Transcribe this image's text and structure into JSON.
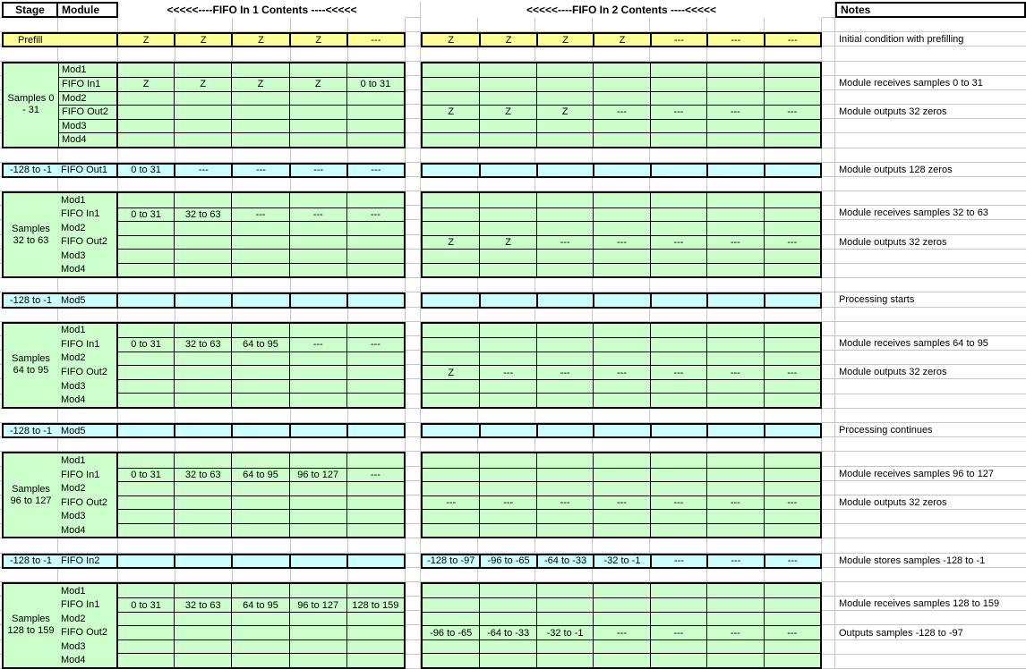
{
  "header": {
    "stage": "Stage",
    "module": "Module",
    "fifo1": "<<<<<----FIFO In 1 Contents ----<<<<<",
    "fifo2": "<<<<<----FIFO In 2 Contents ----<<<<<",
    "notes": "Notes"
  },
  "colors": {
    "prefill": "#FFFF99",
    "block": "#CCFFCC",
    "interlude": "#CCFFFF",
    "gridline": "#C6C6C6",
    "border": "#000000"
  },
  "prefill_row": {
    "label": "Prefill",
    "fifo1": [
      "Z",
      "Z",
      "Z",
      "Z",
      "---"
    ],
    "fifo2": [
      "Z",
      "Z",
      "Z",
      "Z",
      "---",
      "---",
      "---"
    ],
    "note": "Initial condition with prefilling"
  },
  "blocks": [
    {
      "stage_lines": [
        "Samples 0",
        "- 31"
      ],
      "rows": [
        {
          "module": "Mod1",
          "fifo1": [
            "",
            "",
            "",
            "",
            ""
          ],
          "fifo2": [
            "",
            "",
            "",
            "",
            "",
            "",
            ""
          ],
          "note": ""
        },
        {
          "module": "FIFO In1",
          "fifo1": [
            "Z",
            "Z",
            "Z",
            "Z",
            "0 to 31"
          ],
          "fifo2": [
            "",
            "",
            "",
            "",
            "",
            "",
            ""
          ],
          "note": "Module receives samples 0 to 31"
        },
        {
          "module": "Mod2",
          "fifo1": [
            "",
            "",
            "",
            "",
            ""
          ],
          "fifo2": [
            "",
            "",
            "",
            "",
            "",
            "",
            ""
          ],
          "note": ""
        },
        {
          "module": "FIFO Out2",
          "fifo1": [
            "",
            "",
            "",
            "",
            ""
          ],
          "fifo2": [
            "Z",
            "Z",
            "Z",
            "---",
            "---",
            "---",
            "---"
          ],
          "note": "Module outputs 32 zeros"
        },
        {
          "module": "Mod3",
          "fifo1": [
            "",
            "",
            "",
            "",
            ""
          ],
          "fifo2": [
            "",
            "",
            "",
            "",
            "",
            "",
            ""
          ],
          "note": ""
        },
        {
          "module": "Mod4",
          "fifo1": [
            "",
            "",
            "",
            "",
            ""
          ],
          "fifo2": [
            "",
            "",
            "",
            "",
            "",
            "",
            ""
          ],
          "note": ""
        }
      ]
    },
    {
      "stage_lines": [
        "Samples",
        "32 to 63"
      ],
      "rows": [
        {
          "module": "Mod1",
          "fifo1": [
            "",
            "",
            "",
            "",
            ""
          ],
          "fifo2": [
            "",
            "",
            "",
            "",
            "",
            "",
            ""
          ],
          "note": ""
        },
        {
          "module": "FIFO In1",
          "fifo1": [
            "0 to 31",
            "32 to 63",
            "---",
            "---",
            "---"
          ],
          "fifo2": [
            "",
            "",
            "",
            "",
            "",
            "",
            ""
          ],
          "note": "Module receives samples 32 to 63"
        },
        {
          "module": "Mod2",
          "fifo1": [
            "",
            "",
            "",
            "",
            ""
          ],
          "fifo2": [
            "",
            "",
            "",
            "",
            "",
            "",
            ""
          ],
          "note": ""
        },
        {
          "module": "FIFO Out2",
          "fifo1": [
            "",
            "",
            "",
            "",
            ""
          ],
          "fifo2": [
            "Z",
            "Z",
            "---",
            "---",
            "---",
            "---",
            "---"
          ],
          "note": "Module outputs 32 zeros"
        },
        {
          "module": "Mod3",
          "fifo1": [
            "",
            "",
            "",
            "",
            ""
          ],
          "fifo2": [
            "",
            "",
            "",
            "",
            "",
            "",
            ""
          ],
          "note": ""
        },
        {
          "module": "Mod4",
          "fifo1": [
            "",
            "",
            "",
            "",
            ""
          ],
          "fifo2": [
            "",
            "",
            "",
            "",
            "",
            "",
            ""
          ],
          "note": ""
        }
      ]
    },
    {
      "stage_lines": [
        "Samples",
        "64 to 95"
      ],
      "rows": [
        {
          "module": "Mod1",
          "fifo1": [
            "",
            "",
            "",
            "",
            ""
          ],
          "fifo2": [
            "",
            "",
            "",
            "",
            "",
            "",
            ""
          ],
          "note": ""
        },
        {
          "module": "FIFO In1",
          "fifo1": [
            "0 to 31",
            "32 to 63",
            "64 to 95",
            "---",
            "---"
          ],
          "fifo2": [
            "",
            "",
            "",
            "",
            "",
            "",
            ""
          ],
          "note": "Module receives samples 64 to 95"
        },
        {
          "module": "Mod2",
          "fifo1": [
            "",
            "",
            "",
            "",
            ""
          ],
          "fifo2": [
            "",
            "",
            "",
            "",
            "",
            "",
            ""
          ],
          "note": ""
        },
        {
          "module": "FIFO Out2",
          "fifo1": [
            "",
            "",
            "",
            "",
            ""
          ],
          "fifo2": [
            "Z",
            "---",
            "---",
            "---",
            "---",
            "---",
            "---"
          ],
          "note": "Module outputs 32 zeros"
        },
        {
          "module": "Mod3",
          "fifo1": [
            "",
            "",
            "",
            "",
            ""
          ],
          "fifo2": [
            "",
            "",
            "",
            "",
            "",
            "",
            ""
          ],
          "note": ""
        },
        {
          "module": "Mod4",
          "fifo1": [
            "",
            "",
            "",
            "",
            ""
          ],
          "fifo2": [
            "",
            "",
            "",
            "",
            "",
            "",
            ""
          ],
          "note": ""
        }
      ]
    },
    {
      "stage_lines": [
        "Samples",
        "96 to 127"
      ],
      "rows": [
        {
          "module": "Mod1",
          "fifo1": [
            "",
            "",
            "",
            "",
            ""
          ],
          "fifo2": [
            "",
            "",
            "",
            "",
            "",
            "",
            ""
          ],
          "note": ""
        },
        {
          "module": "FIFO In1",
          "fifo1": [
            "0 to 31",
            "32 to 63",
            "64 to 95",
            "96 to 127",
            "---"
          ],
          "fifo2": [
            "",
            "",
            "",
            "",
            "",
            "",
            ""
          ],
          "note": "Module receives samples 96 to 127"
        },
        {
          "module": "Mod2",
          "fifo1": [
            "",
            "",
            "",
            "",
            ""
          ],
          "fifo2": [
            "",
            "",
            "",
            "",
            "",
            "",
            ""
          ],
          "note": ""
        },
        {
          "module": "FIFO Out2",
          "fifo1": [
            "",
            "",
            "",
            "",
            ""
          ],
          "fifo2": [
            "---",
            "---",
            "---",
            "---",
            "---",
            "---",
            "---"
          ],
          "note": "Module outputs 32 zeros"
        },
        {
          "module": "Mod3",
          "fifo1": [
            "",
            "",
            "",
            "",
            ""
          ],
          "fifo2": [
            "",
            "",
            "",
            "",
            "",
            "",
            ""
          ],
          "note": ""
        },
        {
          "module": "Mod4",
          "fifo1": [
            "",
            "",
            "",
            "",
            ""
          ],
          "fifo2": [
            "",
            "",
            "",
            "",
            "",
            "",
            ""
          ],
          "note": ""
        }
      ]
    },
    {
      "stage_lines": [
        "Samples",
        "128 to 159"
      ],
      "rows": [
        {
          "module": "Mod1",
          "fifo1": [
            "",
            "",
            "",
            "",
            ""
          ],
          "fifo2": [
            "",
            "",
            "",
            "",
            "",
            "",
            ""
          ],
          "note": ""
        },
        {
          "module": "FIFO In1",
          "fifo1": [
            "0 to 31",
            "32 to 63",
            "64 to 95",
            "96 to 127",
            "128 to 159"
          ],
          "fifo2": [
            "",
            "",
            "",
            "",
            "",
            "",
            ""
          ],
          "note": "Module receives samples 128 to 159"
        },
        {
          "module": "Mod2",
          "fifo1": [
            "",
            "",
            "",
            "",
            ""
          ],
          "fifo2": [
            "",
            "",
            "",
            "",
            "",
            "",
            ""
          ],
          "note": ""
        },
        {
          "module": "FIFO Out2",
          "fifo1": [
            "",
            "",
            "",
            "",
            ""
          ],
          "fifo2": [
            "-96 to -65",
            "-64 to -33",
            "-32 to -1",
            "---",
            "---",
            "---",
            "---"
          ],
          "note": "Outputs samples -128 to -97"
        },
        {
          "module": "Mod3",
          "fifo1": [
            "",
            "",
            "",
            "",
            ""
          ],
          "fifo2": [
            "",
            "",
            "",
            "",
            "",
            "",
            ""
          ],
          "note": ""
        },
        {
          "module": "Mod4",
          "fifo1": [
            "",
            "",
            "",
            "",
            ""
          ],
          "fifo2": [
            "",
            "",
            "",
            "",
            "",
            "",
            ""
          ],
          "note": ""
        }
      ]
    }
  ],
  "interludes": [
    {
      "stage": "-128 to -1",
      "module": "FIFO Out1",
      "fifo1": [
        "0 to 31",
        "---",
        "---",
        "---",
        "---"
      ],
      "fifo2": [
        "",
        "",
        "",
        "",
        "",
        "",
        ""
      ],
      "note": "Module outputs 128 zeros"
    },
    {
      "stage": "-128 to -1",
      "module": "Mod5",
      "fifo1": [
        "",
        "",
        "",
        "",
        ""
      ],
      "fifo2": [
        "",
        "",
        "",
        "",
        "",
        "",
        ""
      ],
      "note": "Processing starts"
    },
    {
      "stage": "-128 to -1",
      "module": "Mod5",
      "fifo1": [
        "",
        "",
        "",
        "",
        ""
      ],
      "fifo2": [
        "",
        "",
        "",
        "",
        "",
        "",
        ""
      ],
      "note": "Processing continues"
    },
    {
      "stage": "-128 to -1",
      "module": "FIFO In2",
      "fifo1": [
        "",
        "",
        "",
        "",
        ""
      ],
      "fifo2": [
        "-128 to -97",
        "-96 to -65",
        "-64 to -33",
        "-32 to -1",
        "---",
        "---",
        "---"
      ],
      "note": "Module stores samples -128 to -1"
    }
  ]
}
